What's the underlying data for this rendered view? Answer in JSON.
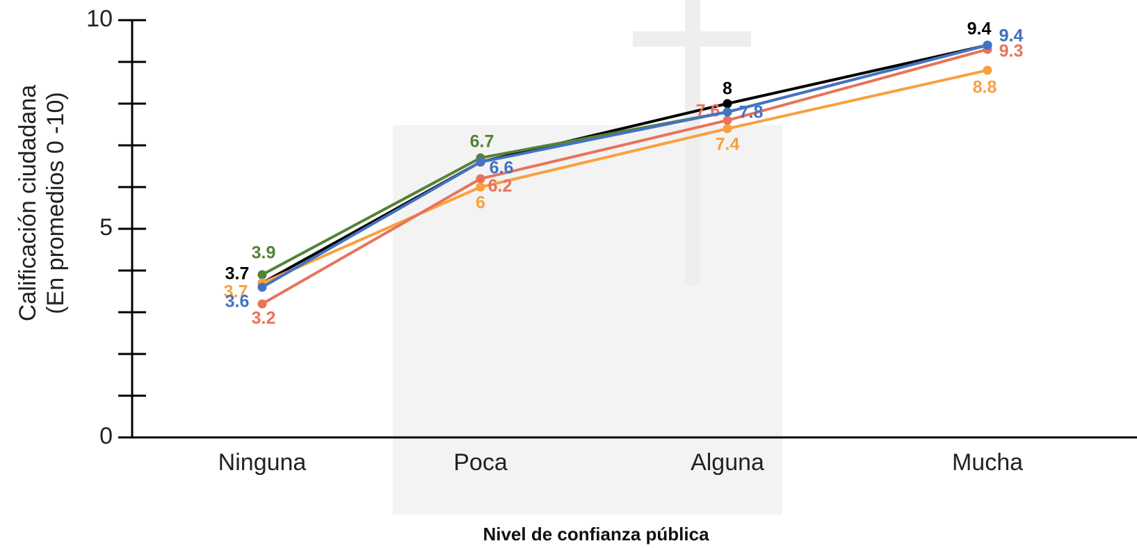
{
  "chart_data": {
    "type": "line",
    "y_label": [
      "Calificación ciudadana",
      "(En promedios 0 -10)"
    ],
    "x_label": "Nivel de confianza pública",
    "categories": [
      "Ninguna",
      "Poca",
      "Alguna",
      "Mucha"
    ],
    "series": [
      {
        "color": "#000000",
        "values": [
          3.7,
          6.6,
          8,
          9.4
        ],
        "value_labels": [
          "3.7",
          null,
          "8",
          "9.4"
        ]
      },
      {
        "color": "#548235",
        "values": [
          3.9,
          6.7,
          7.8,
          9.4
        ],
        "value_labels": [
          "3.9",
          "6.7",
          null,
          "9.4"
        ]
      },
      {
        "color": "#f9a03f",
        "values": [
          3.7,
          6,
          7.4,
          8.8
        ],
        "value_labels": [
          "3.7",
          "6",
          "7.4",
          "8.8"
        ]
      },
      {
        "color": "#e8735a",
        "values": [
          3.2,
          6.2,
          7.6,
          9.3
        ],
        "value_labels": [
          "3.2",
          "6.2",
          "7.6",
          "9.3"
        ]
      },
      {
        "color": "#4472c4",
        "values": [
          3.6,
          6.6,
          7.8,
          9.4
        ],
        "value_labels": [
          "3.6",
          "6.6",
          "7.8",
          "9.4"
        ]
      }
    ],
    "ylim": [
      0,
      10
    ],
    "yticks": [
      0,
      5,
      10
    ],
    "yminorticks": [
      1,
      2,
      3,
      4,
      6,
      7,
      8,
      9
    ]
  }
}
